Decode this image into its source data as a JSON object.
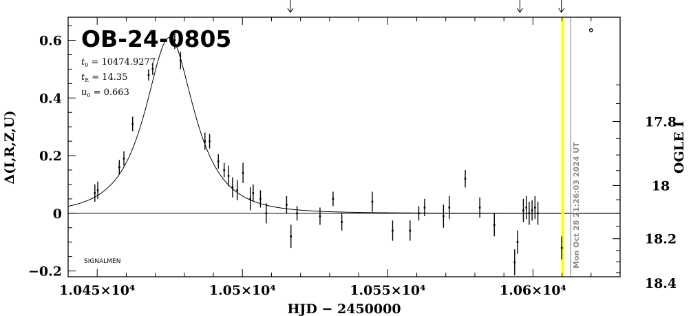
{
  "chart_data": {
    "type": "scatter",
    "title": "OB-24-0805",
    "params": [
      {
        "symbol": "t",
        "sub": "0",
        "text": " = 10474.9277"
      },
      {
        "symbol": "t",
        "sub": "E",
        "text": " = 14.35"
      },
      {
        "symbol": "u",
        "sub": "0",
        "text": " = 0.663"
      }
    ],
    "xlabel": "HJD − 2450000",
    "ylabel": "Δ(I,R,Z,U)",
    "ylabel_right": "OGLE I",
    "xlim": [
      10440,
      10630
    ],
    "ylim": [
      -0.22,
      0.68
    ],
    "x_ticks": [
      {
        "value": 10450,
        "label": "1.045×10⁴"
      },
      {
        "value": 10500,
        "label": "1.05×10⁴"
      },
      {
        "value": 10550,
        "label": "1.055×10⁴"
      },
      {
        "value": 10600,
        "label": "1.06×10⁴"
      }
    ],
    "y_ticks": [
      {
        "value": -0.2,
        "label": "−0.2"
      },
      {
        "value": 0,
        "label": "0"
      },
      {
        "value": 0.2,
        "label": "0.2"
      },
      {
        "value": 0.4,
        "label": "0.4"
      },
      {
        "value": 0.6,
        "label": "0.6"
      }
    ],
    "right_ticks": [
      {
        "mag": 17.8,
        "label": "17.8"
      },
      {
        "mag": 18,
        "label": "18"
      },
      {
        "mag": 18.2,
        "label": "18.2"
      },
      {
        "mag": 18.4,
        "label": "18.4"
      }
    ],
    "baseline_mag": 18.1,
    "model": {
      "t0": 10474.9277,
      "tE": 14.35,
      "u0": 0.663
    },
    "current_time": 10610.3,
    "current_time_label": "Mon Oct 28 21:26:03 2024 UT",
    "grey_line_x": 10613.0,
    "arrow_x": [
      10516.5,
      10595.5,
      10609.8
    ],
    "corner_label": "SIGNALMEN",
    "points": [
      {
        "x": 10449.2,
        "y": 0.07,
        "e": 0.03
      },
      {
        "x": 10450.2,
        "y": 0.08,
        "e": 0.03
      },
      {
        "x": 10457.6,
        "y": 0.16,
        "e": 0.025
      },
      {
        "x": 10459.2,
        "y": 0.19,
        "e": 0.025
      },
      {
        "x": 10462.2,
        "y": 0.31,
        "e": 0.025
      },
      {
        "x": 10467.7,
        "y": 0.48,
        "e": 0.02
      },
      {
        "x": 10469.1,
        "y": 0.5,
        "e": 0.02
      },
      {
        "x": 10476.7,
        "y": 0.6,
        "e": 0.03
      },
      {
        "x": 10478.7,
        "y": 0.53,
        "e": 0.03
      },
      {
        "x": 10487.1,
        "y": 0.25,
        "e": 0.03
      },
      {
        "x": 10488.7,
        "y": 0.25,
        "e": 0.025
      },
      {
        "x": 10491.7,
        "y": 0.18,
        "e": 0.025
      },
      {
        "x": 10493.7,
        "y": 0.15,
        "e": 0.025
      },
      {
        "x": 10495.2,
        "y": 0.13,
        "e": 0.035
      },
      {
        "x": 10496.6,
        "y": 0.09,
        "e": 0.035
      },
      {
        "x": 10498.2,
        "y": 0.08,
        "e": 0.035
      },
      {
        "x": 10500.2,
        "y": 0.14,
        "e": 0.035
      },
      {
        "x": 10502.7,
        "y": 0.05,
        "e": 0.04
      },
      {
        "x": 10503.7,
        "y": 0.07,
        "e": 0.03
      },
      {
        "x": 10506.2,
        "y": 0.05,
        "e": 0.03
      },
      {
        "x": 10508.2,
        "y": 0.0,
        "e": 0.035
      },
      {
        "x": 10515.2,
        "y": 0.03,
        "e": 0.03
      },
      {
        "x": 10516.7,
        "y": -0.08,
        "e": 0.04
      },
      {
        "x": 10518.8,
        "y": 0.0,
        "e": 0.025
      },
      {
        "x": 10526.7,
        "y": -0.01,
        "e": 0.03
      },
      {
        "x": 10531.2,
        "y": 0.05,
        "e": 0.025
      },
      {
        "x": 10534.2,
        "y": -0.03,
        "e": 0.03
      },
      {
        "x": 10544.7,
        "y": 0.04,
        "e": 0.035
      },
      {
        "x": 10551.7,
        "y": -0.06,
        "e": 0.035
      },
      {
        "x": 10557.7,
        "y": -0.06,
        "e": 0.035
      },
      {
        "x": 10560.7,
        "y": 0.0,
        "e": 0.025
      },
      {
        "x": 10562.7,
        "y": 0.02,
        "e": 0.03
      },
      {
        "x": 10569.2,
        "y": -0.01,
        "e": 0.04
      },
      {
        "x": 10571.2,
        "y": 0.02,
        "e": 0.04
      },
      {
        "x": 10576.7,
        "y": 0.12,
        "e": 0.03
      },
      {
        "x": 10581.7,
        "y": 0.02,
        "e": 0.035
      },
      {
        "x": 10586.7,
        "y": -0.04,
        "e": 0.04
      },
      {
        "x": 10593.7,
        "y": -0.17,
        "e": 0.045
      },
      {
        "x": 10594.7,
        "y": -0.1,
        "e": 0.04
      },
      {
        "x": 10596.7,
        "y": 0.01,
        "e": 0.04
      },
      {
        "x": 10597.7,
        "y": 0.02,
        "e": 0.04
      },
      {
        "x": 10598.7,
        "y": 0.0,
        "e": 0.04
      },
      {
        "x": 10599.7,
        "y": 0.01,
        "e": 0.035
      },
      {
        "x": 10600.7,
        "y": 0.02,
        "e": 0.04
      },
      {
        "x": 10601.7,
        "y": 0.0,
        "e": 0.04
      },
      {
        "x": 10609.9,
        "y": -0.12,
        "e": 0.04
      }
    ],
    "extra_marks": [
      {
        "x": 10620,
        "y": 0.635,
        "symbol": "circle"
      }
    ],
    "grid": false,
    "legend": "none"
  }
}
